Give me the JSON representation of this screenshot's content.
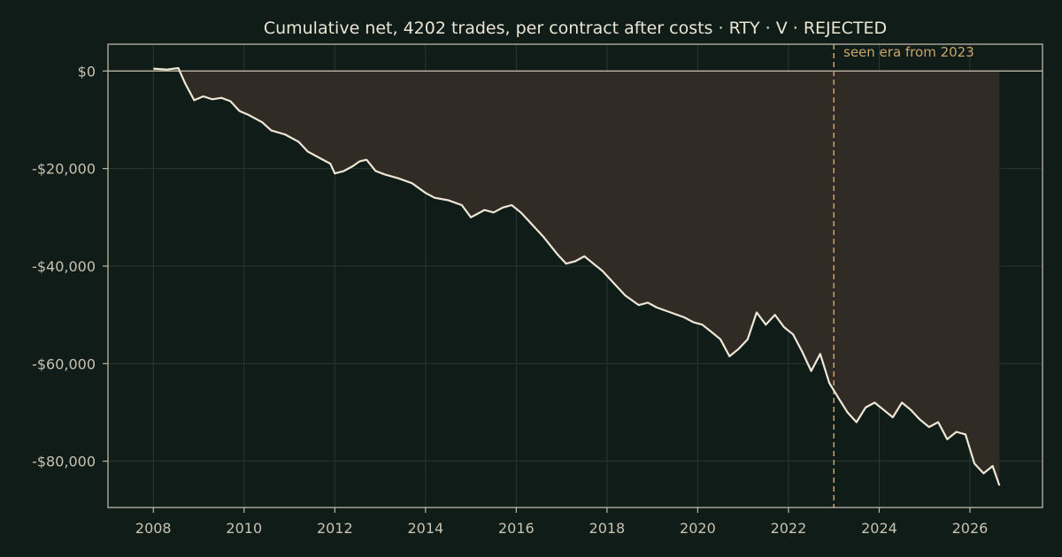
{
  "chart_data": {
    "type": "area",
    "title": "Cumulative net, 4202 trades, per contract after costs  ·  RTY · V · REJECTED",
    "xlabel": "",
    "ylabel": "",
    "x_ticks": [
      2008,
      2010,
      2012,
      2014,
      2016,
      2018,
      2020,
      2022,
      2024,
      2026
    ],
    "y_ticks": [
      0,
      -20000,
      -40000,
      -60000,
      -80000
    ],
    "y_tick_labels": [
      "$0",
      "-$20,000",
      "-$40,000",
      "-$60,000",
      "-$80,000"
    ],
    "x_tick_labels": [
      "2008",
      "2010",
      "2012",
      "2014",
      "2016",
      "2018",
      "2020",
      "2022",
      "2024",
      "2026"
    ],
    "xlim": [
      2007.0,
      2027.6
    ],
    "ylim": [
      -89500,
      5500
    ],
    "grid": true,
    "baseline": 0,
    "vline": {
      "x": 2023.0,
      "label": "seen era from 2023"
    },
    "series": [
      {
        "x": [
          2008.0,
          2008.3,
          2008.55,
          2008.7,
          2008.9,
          2009.1,
          2009.3,
          2009.5,
          2009.7,
          2009.9,
          2010.1,
          2010.4,
          2010.6,
          2010.9,
          2011.2,
          2011.4,
          2011.6,
          2011.9,
          2012.0,
          2012.2,
          2012.4,
          2012.55,
          2012.7,
          2012.9,
          2013.1,
          2013.4,
          2013.7,
          2014.0,
          2014.2,
          2014.5,
          2014.8,
          2015.0,
          2015.3,
          2015.5,
          2015.7,
          2015.9,
          2016.1,
          2016.3,
          2016.6,
          2016.9,
          2017.1,
          2017.3,
          2017.5,
          2017.7,
          2017.9,
          2018.1,
          2018.4,
          2018.7,
          2018.9,
          2019.1,
          2019.4,
          2019.7,
          2019.9,
          2020.1,
          2020.3,
          2020.5,
          2020.7,
          2020.9,
          2021.1,
          2021.3,
          2021.5,
          2021.7,
          2021.9,
          2022.1,
          2022.3,
          2022.5,
          2022.7,
          2022.9,
          2023.1,
          2023.3,
          2023.5,
          2023.7,
          2023.9,
          2024.1,
          2024.3,
          2024.5,
          2024.7,
          2024.9,
          2025.1,
          2025.3,
          2025.5,
          2025.7,
          2025.9,
          2026.1,
          2026.3,
          2026.5,
          2026.65
        ],
        "values": [
          500,
          300,
          600,
          -2500,
          -6000,
          -5200,
          -5800,
          -5500,
          -6200,
          -8200,
          -9000,
          -10500,
          -12200,
          -13000,
          -14500,
          -16500,
          -17500,
          -19000,
          -21000,
          -20500,
          -19500,
          -18500,
          -18200,
          -20500,
          -21200,
          -22000,
          -23000,
          -25000,
          -26000,
          -26500,
          -27500,
          -30000,
          -28500,
          -29000,
          -28000,
          -27500,
          -29000,
          -31000,
          -34000,
          -37500,
          -39500,
          -39000,
          -38000,
          -39500,
          -41000,
          -43000,
          -46000,
          -48000,
          -47500,
          -48500,
          -49500,
          -50500,
          -51500,
          -52000,
          -53500,
          -55000,
          -58500,
          -57000,
          -55000,
          -49500,
          -52000,
          -50000,
          -52500,
          -54000,
          -57500,
          -61500,
          -58000,
          -64000,
          -67000,
          -70000,
          -72000,
          -69000,
          -68000,
          -69500,
          -71000,
          -68000,
          -69500,
          -71500,
          -73000,
          -72000,
          -75500,
          -74000,
          -74500,
          -80500,
          -82500,
          -81000,
          -85000
        ]
      }
    ]
  }
}
